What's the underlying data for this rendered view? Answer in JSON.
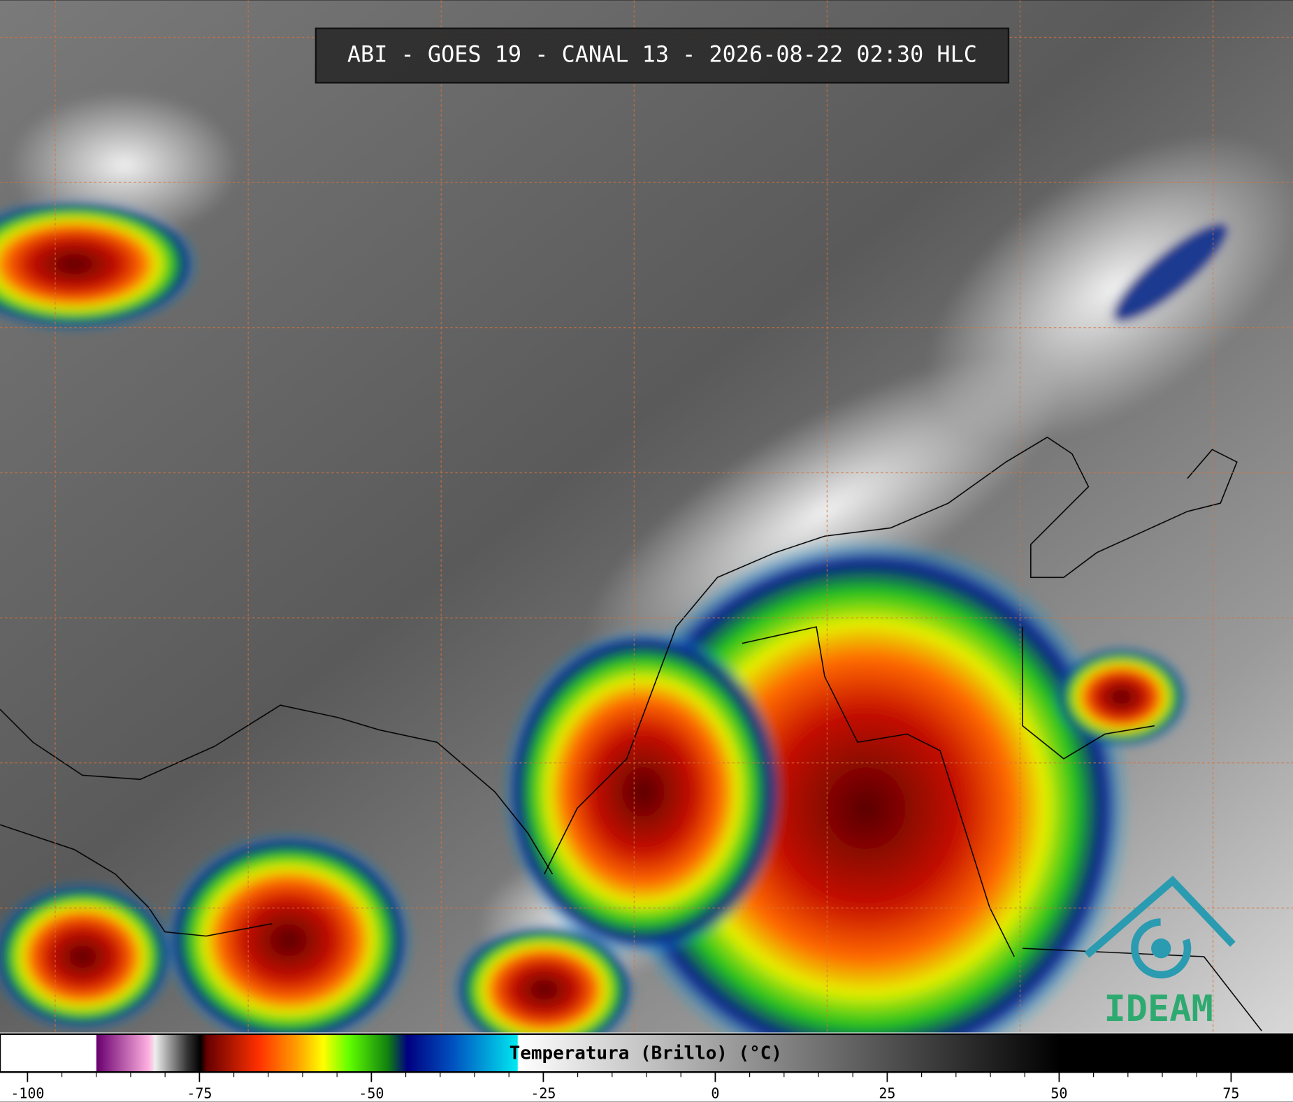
{
  "header": {
    "title": "ABI - GOES 19 - CANAL 13 - 2026-08-22 02:30 HLC"
  },
  "colorbar": {
    "label": "Temperatura (Brillo) (°C)",
    "lim": [
      -104,
      84
    ],
    "ticks": [
      -100,
      -75,
      -50,
      -25,
      0,
      25,
      50,
      75
    ]
  },
  "logo": {
    "text": "IDEAM"
  }
}
